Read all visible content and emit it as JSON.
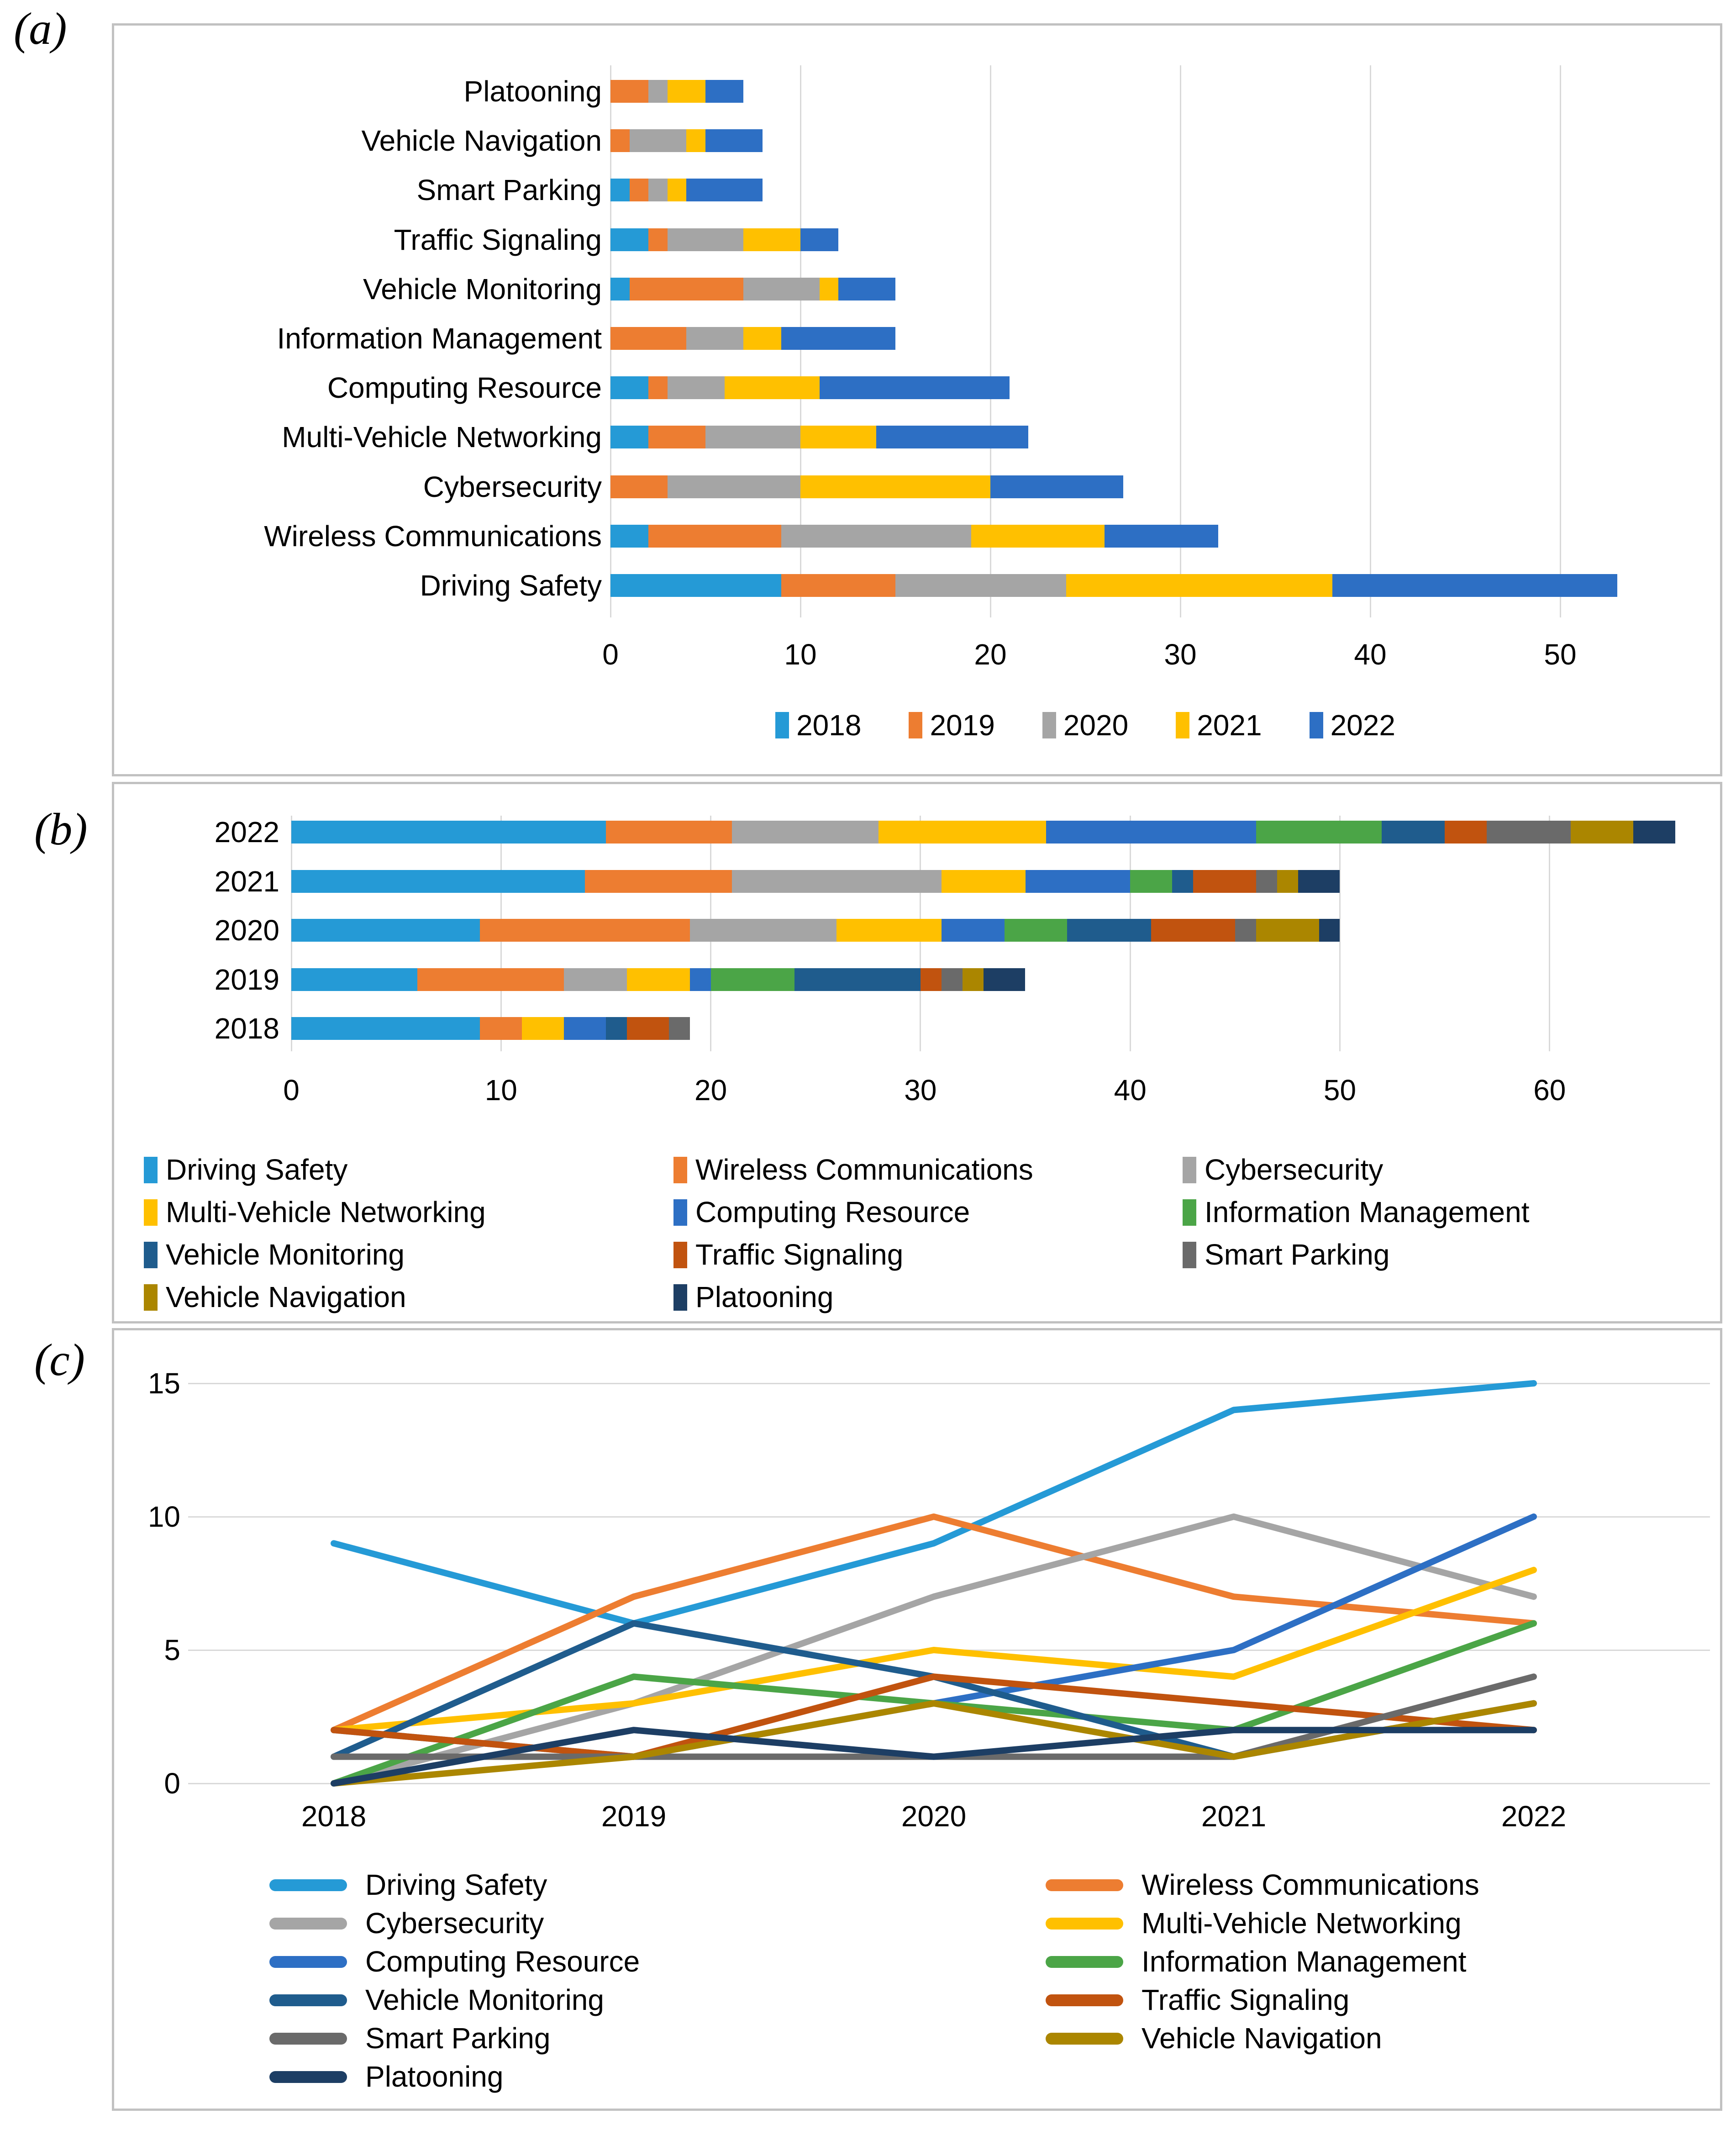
{
  "figure": {
    "panel_a_label": "(a)",
    "panel_b_label": "(b)",
    "panel_c_label": "(c)"
  },
  "years": [
    "2018",
    "2019",
    "2020",
    "2021",
    "2022"
  ],
  "topics": [
    {
      "name": "Driving Safety",
      "color": "#259AD6",
      "values_by_year": [
        9,
        6,
        9,
        14,
        15
      ]
    },
    {
      "name": "Wireless Communications",
      "color": "#ED7D31",
      "values_by_year": [
        2,
        7,
        10,
        7,
        6
      ]
    },
    {
      "name": "Cybersecurity",
      "color": "#A5A5A5",
      "values_by_year": [
        0,
        3,
        7,
        10,
        7
      ]
    },
    {
      "name": "Multi-Vehicle Networking",
      "color": "#FFC000",
      "values_by_year": [
        2,
        3,
        5,
        4,
        8
      ]
    },
    {
      "name": "Computing Resource",
      "color": "#2D6FC4",
      "values_by_year": [
        2,
        1,
        3,
        5,
        10
      ]
    },
    {
      "name": "Information Management",
      "color": "#4BA547",
      "values_by_year": [
        0,
        4,
        3,
        2,
        6
      ]
    },
    {
      "name": "Vehicle Monitoring",
      "color": "#1F5C8D",
      "values_by_year": [
        1,
        6,
        4,
        1,
        3
      ]
    },
    {
      "name": "Traffic Signaling",
      "color": "#C1530F",
      "values_by_year": [
        2,
        1,
        4,
        3,
        2
      ]
    },
    {
      "name": "Smart Parking",
      "color": "#6A6A6A",
      "values_by_year": [
        1,
        1,
        1,
        1,
        4
      ]
    },
    {
      "name": "Vehicle Navigation",
      "color": "#AB8600",
      "values_by_year": [
        0,
        1,
        3,
        1,
        3
      ]
    },
    {
      "name": "Platooning",
      "color": "#1D3E64",
      "values_by_year": [
        0,
        2,
        1,
        2,
        2
      ]
    }
  ],
  "chart_data": [
    {
      "panel": "a",
      "type": "bar",
      "orientation": "horizontal",
      "stacked": true,
      "categories": [
        "Platooning",
        "Vehicle Navigation",
        "Smart Parking",
        "Traffic Signaling",
        "Vehicle Monitoring",
        "Information Management",
        "Computing Resource",
        "Multi-Vehicle Networking",
        "Cybersecurity",
        "Wireless Communications",
        "Driving Safety"
      ],
      "series": [
        {
          "name": "2018",
          "color": "#259AD6",
          "values": [
            0,
            0,
            1,
            2,
            1,
            0,
            2,
            2,
            0,
            2,
            9
          ]
        },
        {
          "name": "2019",
          "color": "#ED7D31",
          "values": [
            2,
            1,
            1,
            1,
            6,
            4,
            1,
            3,
            3,
            7,
            6
          ]
        },
        {
          "name": "2020",
          "color": "#A5A5A5",
          "values": [
            1,
            3,
            1,
            4,
            4,
            3,
            3,
            5,
            7,
            10,
            9
          ]
        },
        {
          "name": "2021",
          "color": "#FFC000",
          "values": [
            2,
            1,
            1,
            3,
            1,
            2,
            5,
            4,
            10,
            7,
            14
          ]
        },
        {
          "name": "2022",
          "color": "#2D6FC4",
          "values": [
            2,
            3,
            4,
            2,
            3,
            6,
            10,
            8,
            7,
            6,
            15
          ]
        }
      ],
      "xticks": [
        0,
        10,
        20,
        30,
        40,
        50
      ],
      "xlim": [
        0,
        55
      ],
      "grid": true,
      "legend_position": "bottom",
      "legend": [
        "2018",
        "2019",
        "2020",
        "2021",
        "2022"
      ]
    },
    {
      "panel": "b",
      "type": "bar",
      "orientation": "horizontal",
      "stacked": true,
      "categories": [
        "2022",
        "2021",
        "2020",
        "2019",
        "2018"
      ],
      "series": [
        {
          "name": "Driving Safety",
          "color": "#259AD6",
          "values": [
            15,
            14,
            9,
            6,
            9
          ]
        },
        {
          "name": "Wireless Communications",
          "color": "#ED7D31",
          "values": [
            6,
            7,
            10,
            7,
            2
          ]
        },
        {
          "name": "Cybersecurity",
          "color": "#A5A5A5",
          "values": [
            7,
            10,
            7,
            3,
            0
          ]
        },
        {
          "name": "Multi-Vehicle Networking",
          "color": "#FFC000",
          "values": [
            8,
            4,
            5,
            3,
            2
          ]
        },
        {
          "name": "Computing Resource",
          "color": "#2D6FC4",
          "values": [
            10,
            5,
            3,
            1,
            2
          ]
        },
        {
          "name": "Information Management",
          "color": "#4BA547",
          "values": [
            6,
            2,
            3,
            4,
            0
          ]
        },
        {
          "name": "Vehicle Monitoring",
          "color": "#1F5C8D",
          "values": [
            3,
            1,
            4,
            6,
            1
          ]
        },
        {
          "name": "Traffic Signaling",
          "color": "#C1530F",
          "values": [
            2,
            3,
            4,
            1,
            2
          ]
        },
        {
          "name": "Smart Parking",
          "color": "#6A6A6A",
          "values": [
            4,
            1,
            1,
            1,
            1
          ]
        },
        {
          "name": "Vehicle Navigation",
          "color": "#AB8600",
          "values": [
            3,
            1,
            3,
            1,
            0
          ]
        },
        {
          "name": "Platooning",
          "color": "#1D3E64",
          "values": [
            2,
            2,
            1,
            2,
            0
          ]
        }
      ],
      "xticks": [
        0,
        10,
        20,
        30,
        40,
        50,
        60
      ],
      "xlim": [
        0,
        67
      ],
      "grid": true,
      "legend_position": "bottom",
      "legend_grid": [
        [
          "Driving Safety",
          "Wireless Communications",
          "Cybersecurity"
        ],
        [
          "Multi-Vehicle Networking",
          "Computing Resource",
          "Information Management"
        ],
        [
          "Vehicle Monitoring",
          "Traffic Signaling",
          "Smart Parking"
        ],
        [
          "Vehicle Navigation",
          "Platooning"
        ]
      ]
    },
    {
      "panel": "c",
      "type": "line",
      "x": [
        "2018",
        "2019",
        "2020",
        "2021",
        "2022"
      ],
      "yticks": [
        0,
        5,
        10,
        15
      ],
      "ylim": [
        0,
        16
      ],
      "grid": true,
      "series": [
        {
          "name": "Driving Safety",
          "color": "#259AD6",
          "values": [
            9,
            6,
            9,
            14,
            15
          ]
        },
        {
          "name": "Wireless Communications",
          "color": "#ED7D31",
          "values": [
            2,
            7,
            10,
            7,
            6
          ]
        },
        {
          "name": "Cybersecurity",
          "color": "#A5A5A5",
          "values": [
            0,
            3,
            7,
            10,
            7
          ]
        },
        {
          "name": "Multi-Vehicle Networking",
          "color": "#FFC000",
          "values": [
            2,
            3,
            5,
            4,
            8
          ]
        },
        {
          "name": "Computing Resource",
          "color": "#2D6FC4",
          "values": [
            2,
            1,
            3,
            5,
            10
          ]
        },
        {
          "name": "Information Management",
          "color": "#4BA547",
          "values": [
            0,
            4,
            3,
            2,
            6
          ]
        },
        {
          "name": "Vehicle Monitoring",
          "color": "#1F5C8D",
          "values": [
            1,
            6,
            4,
            1,
            3
          ]
        },
        {
          "name": "Traffic Signaling",
          "color": "#C1530F",
          "values": [
            2,
            1,
            4,
            3,
            2
          ]
        },
        {
          "name": "Smart Parking",
          "color": "#6A6A6A",
          "values": [
            1,
            1,
            1,
            1,
            4
          ]
        },
        {
          "name": "Vehicle Navigation",
          "color": "#AB8600",
          "values": [
            0,
            1,
            3,
            1,
            3
          ]
        },
        {
          "name": "Platooning",
          "color": "#1D3E64",
          "values": [
            0,
            2,
            1,
            2,
            2
          ]
        }
      ],
      "legend_columns": [
        [
          "Driving Safety",
          "Cybersecurity",
          "Computing Resource",
          "Vehicle Monitoring",
          "Smart Parking",
          "Platooning"
        ],
        [
          "Wireless Communications",
          "Multi-Vehicle Networking",
          "Information Management",
          "Traffic Signaling",
          "Vehicle Navigation"
        ]
      ]
    }
  ]
}
